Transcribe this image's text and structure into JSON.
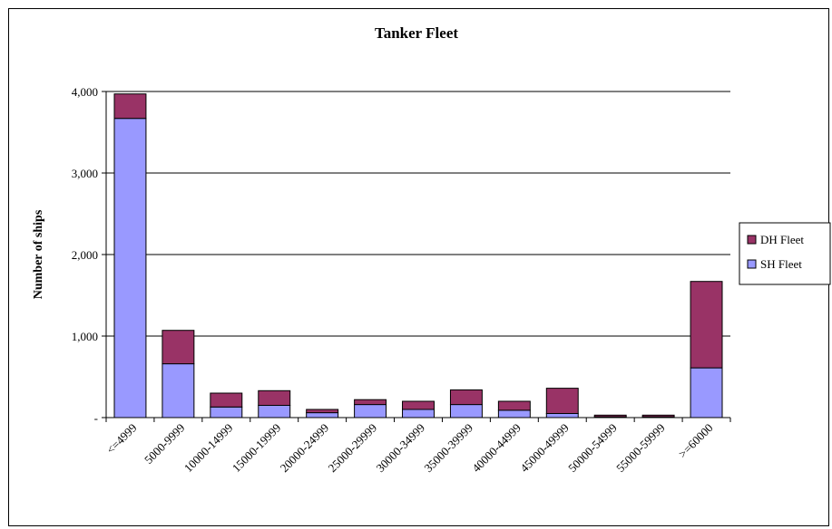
{
  "chart_data": {
    "type": "bar",
    "stacked": true,
    "title": "Tanker Fleet",
    "xlabel": "",
    "ylabel": "Number of ships",
    "ylim": [
      0,
      4000
    ],
    "yticks": [
      0,
      1000,
      2000,
      3000,
      4000
    ],
    "ytick_labels": [
      "-",
      "1,000",
      "2,000",
      "3,000",
      "4,000"
    ],
    "grid": true,
    "legend_position": "right",
    "categories": [
      "<=4999",
      "5000-9999",
      "10000-14999",
      "15000-19999",
      "20000-24999",
      "25000-29999",
      "30000-34999",
      "35000-39999",
      "40000-44999",
      "45000-49999",
      "50000-54999",
      "55000-59999",
      ">=60000"
    ],
    "series": [
      {
        "name": "SH Fleet",
        "color": "#9999FF",
        "values": [
          3670,
          660,
          130,
          150,
          60,
          160,
          100,
          160,
          90,
          50,
          10,
          10,
          610
        ]
      },
      {
        "name": "DH Fleet",
        "color": "#993366",
        "values": [
          300,
          410,
          170,
          180,
          40,
          60,
          100,
          180,
          110,
          310,
          20,
          20,
          1060
        ]
      }
    ],
    "legend_order": [
      "DH Fleet",
      "SH Fleet"
    ]
  }
}
